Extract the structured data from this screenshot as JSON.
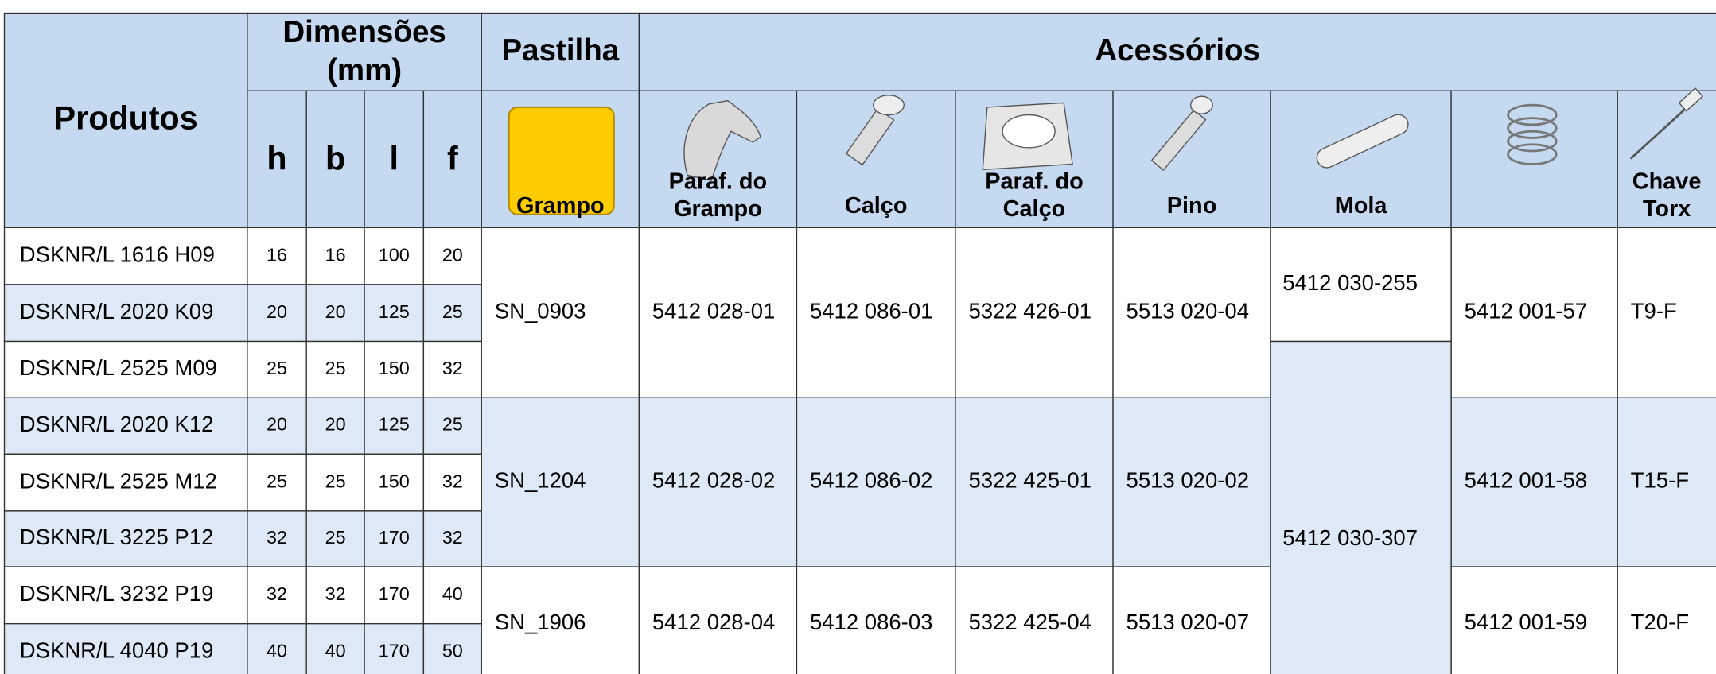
{
  "header": {
    "produtos": "Produtos",
    "dimensoes": [
      "Dimensões",
      "(mm)"
    ],
    "pastilha": "Pastilha",
    "acessorios": "Acessórios",
    "dims": [
      "h",
      "b",
      "l",
      "f"
    ],
    "accessories": [
      [
        "Grampo"
      ],
      [
        "Paraf. do",
        "Grampo"
      ],
      [
        "Calço"
      ],
      [
        "Paraf. do",
        "Calço"
      ],
      [
        "Pino"
      ],
      [
        "Mola"
      ],
      [
        "Chave",
        "Torx"
      ]
    ]
  },
  "rows": [
    [
      "DSKNR/L 1616 H09",
      "16",
      "16",
      "100",
      "20"
    ],
    [
      "DSKNR/L 2020 K09",
      "20",
      "20",
      "125",
      "25"
    ],
    [
      "DSKNR/L 2525 M09",
      "25",
      "25",
      "150",
      "32"
    ],
    [
      "DSKNR/L 2020 K12",
      "20",
      "20",
      "125",
      "25"
    ],
    [
      "DSKNR/L 2525 M12",
      "25",
      "25",
      "150",
      "32"
    ],
    [
      "DSKNR/L 3225 P12",
      "32",
      "25",
      "170",
      "32"
    ],
    [
      "DSKNR/L 3232 P19",
      "32",
      "32",
      "170",
      "40"
    ],
    [
      "DSKNR/L 4040 P19",
      "40",
      "40",
      "170",
      "50"
    ]
  ],
  "groups": [
    {
      "pastilha": "SN_0903",
      "grampo": "5412 028-01",
      "paraf_grampo": "5412 086-01",
      "calco": "5322 426-01",
      "paraf_calco": "5513 020-04",
      "mola": "5412 001-57",
      "chave": "T9-F"
    },
    {
      "pastilha": "SN_1204",
      "grampo": "5412 028-02",
      "paraf_grampo": "5412 086-02",
      "calco": "5322 425-01",
      "paraf_calco": "5513 020-02",
      "mola": "5412 001-58",
      "chave": "T15-F"
    },
    {
      "pastilha": "SN_1906",
      "grampo": "5412 028-04",
      "paraf_grampo": "5412 086-03",
      "calco": "5322 425-04",
      "paraf_calco": "5513 020-07",
      "mola": "5412 001-59",
      "chave": "T20-F"
    }
  ],
  "pino": [
    "5412 030-255",
    "5412 030-307"
  ]
}
